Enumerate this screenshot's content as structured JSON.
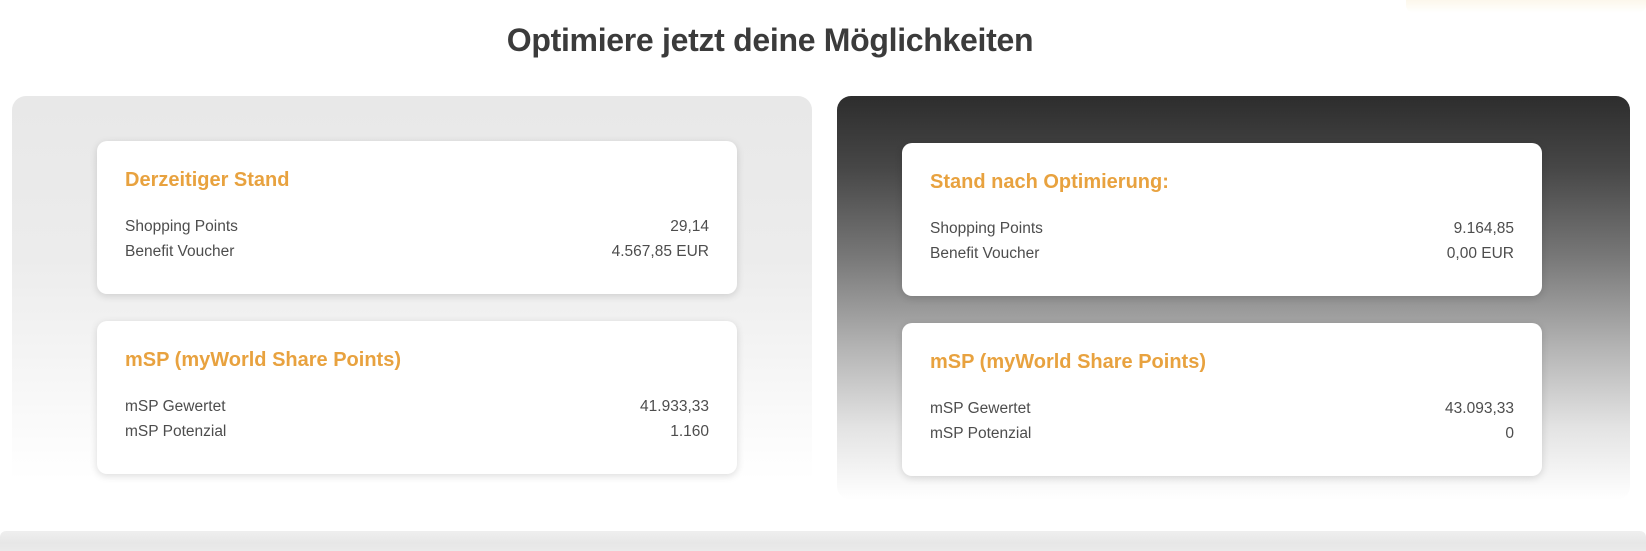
{
  "page": {
    "title": "Optimiere jetzt deine Möglichkeiten"
  },
  "panels": {
    "current": {
      "cards": [
        {
          "heading": "Derzeitiger Stand",
          "rows": [
            {
              "label": "Shopping Points",
              "value": "29,14"
            },
            {
              "label": "Benefit Voucher",
              "value": "4.567,85 EUR"
            }
          ]
        },
        {
          "heading": "mSP (myWorld Share Points)",
          "rows": [
            {
              "label": "mSP Gewertet",
              "value": "41.933,33"
            },
            {
              "label": "mSP Potenzial",
              "value": "1.160"
            }
          ]
        }
      ]
    },
    "optimized": {
      "cards": [
        {
          "heading": "Stand nach Optimierung:",
          "rows": [
            {
              "label": "Shopping Points",
              "value": "9.164,85"
            },
            {
              "label": "Benefit Voucher",
              "value": "0,00 EUR"
            }
          ]
        },
        {
          "heading": "mSP (myWorld Share Points)",
          "rows": [
            {
              "label": "mSP Gewertet",
              "value": "43.093,33"
            },
            {
              "label": "mSP Potenzial",
              "value": "0"
            }
          ]
        }
      ]
    }
  },
  "colors": {
    "accent_orange": "#E8A23F",
    "title_text": "#3B3B3B",
    "body_text": "#4D4D4D",
    "panel_light_top": "#E8E8E8",
    "panel_dark_top": "#2D2D2D",
    "card_background": "#FFFFFF",
    "bottom_bar": "#E8E8E8"
  }
}
